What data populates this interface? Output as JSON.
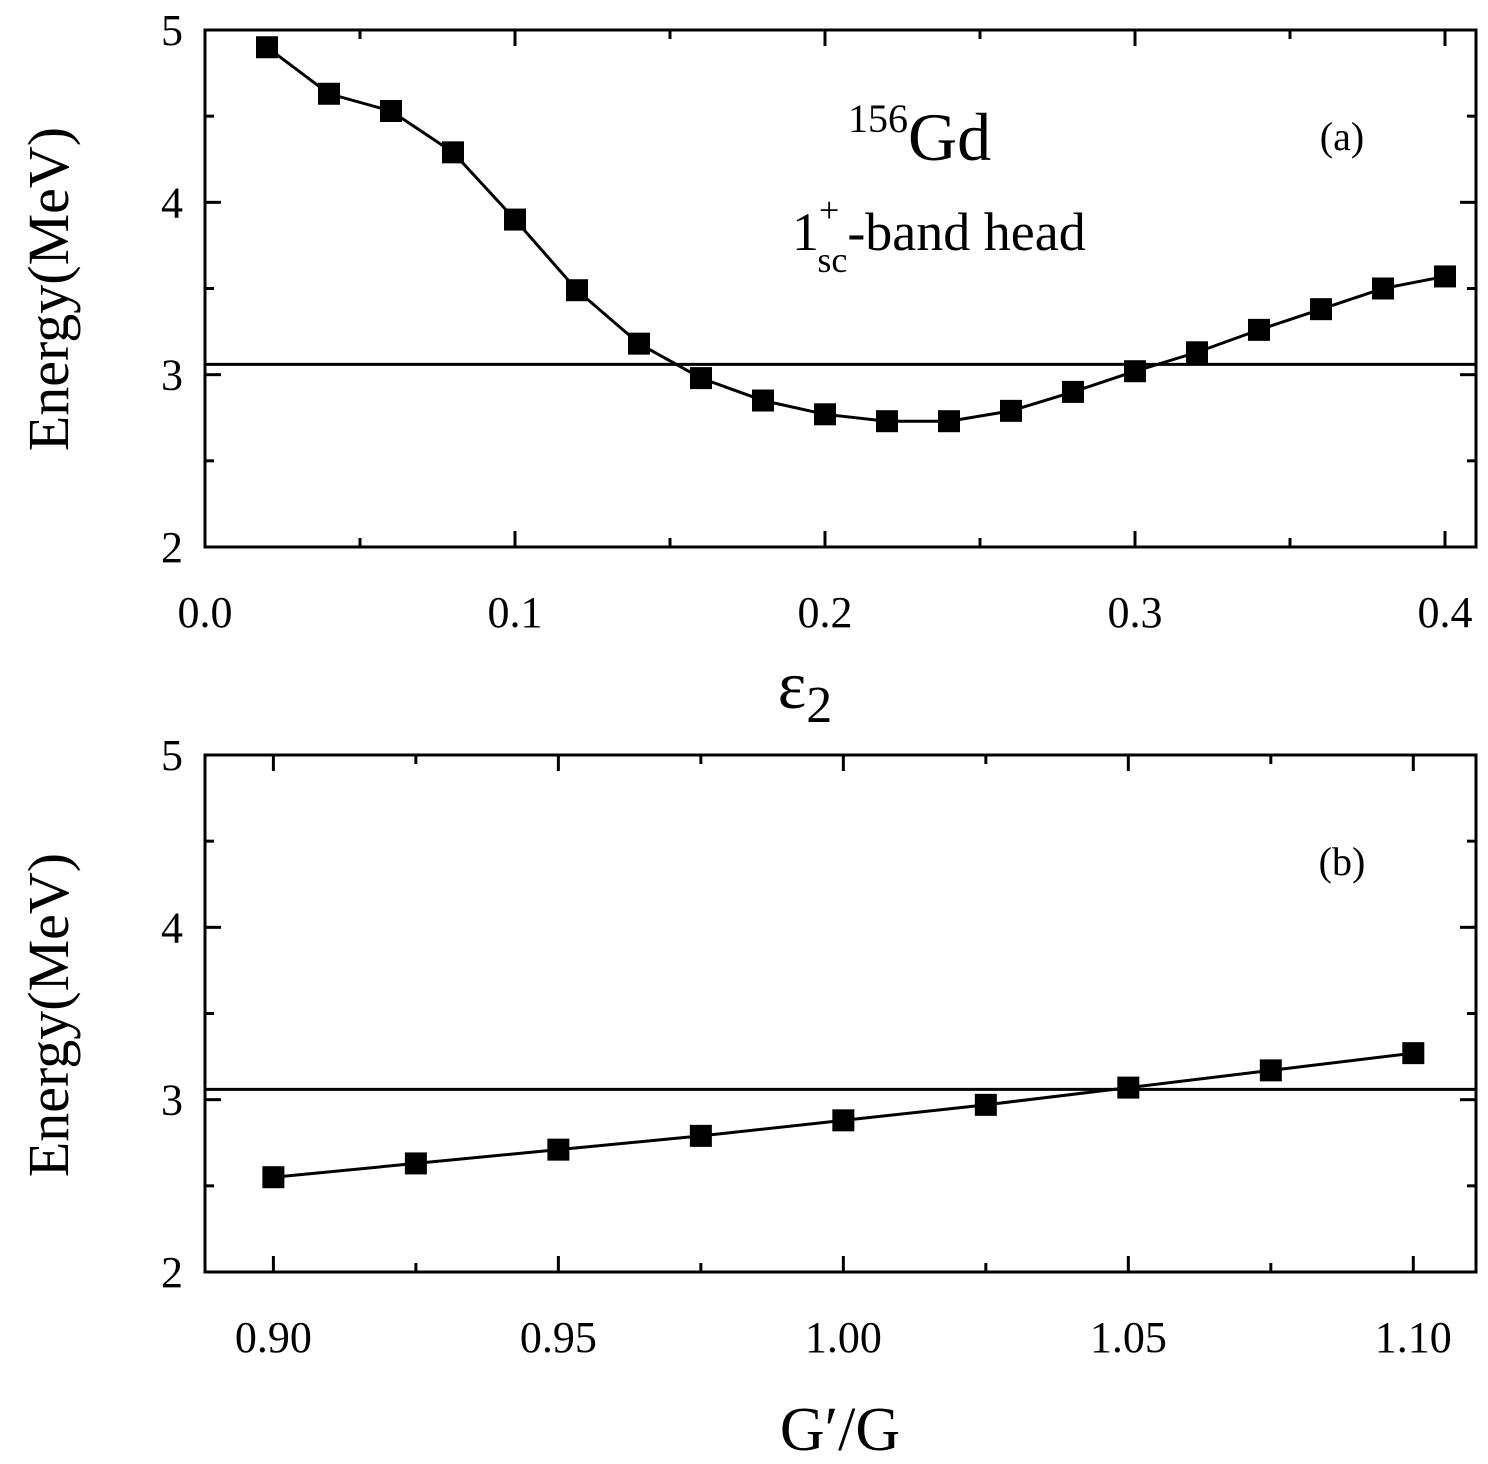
{
  "chart_data": [
    {
      "type": "line",
      "panel_label": "(a)",
      "annotation_nucleus": {
        "mass": "156",
        "element": "Gd"
      },
      "annotation_state": {
        "base": "1",
        "sup": "+",
        "sub": "sc",
        "rest": "-band head"
      },
      "xlabel": {
        "base": "ε",
        "sub": "2"
      },
      "ylabel": "Energy(MeV)",
      "xlim": [
        0.0,
        0.41
      ],
      "ylim": [
        2,
        5
      ],
      "xticks": [
        0.0,
        0.1,
        0.2,
        0.3,
        0.4
      ],
      "xtick_labels": [
        "0.0",
        "0.1",
        "0.2",
        "0.3",
        "0.4"
      ],
      "yticks": [
        2,
        3,
        4,
        5
      ],
      "ytick_labels": [
        "2",
        "3",
        "4",
        "5"
      ],
      "reference_line_y": 3.06,
      "marker": "filled-square",
      "grid": false,
      "series": [
        {
          "x": [
            0.02,
            0.04,
            0.06,
            0.08,
            0.1,
            0.12,
            0.14,
            0.16,
            0.18,
            0.2,
            0.22,
            0.24,
            0.26,
            0.28,
            0.3,
            0.32,
            0.34,
            0.36,
            0.38,
            0.4
          ],
          "y": [
            4.9,
            4.63,
            4.53,
            4.29,
            3.9,
            3.49,
            3.18,
            2.98,
            2.85,
            2.77,
            2.73,
            2.73,
            2.79,
            2.9,
            3.02,
            3.13,
            3.26,
            3.38,
            3.5,
            3.57
          ]
        }
      ]
    },
    {
      "type": "line",
      "panel_label": "(b)",
      "xlabel": {
        "base": "G′/G"
      },
      "ylabel": "Energy(MeV)",
      "xlim": [
        0.888,
        1.111
      ],
      "ylim": [
        2,
        5
      ],
      "xticks": [
        0.9,
        0.95,
        1.0,
        1.05,
        1.1
      ],
      "xtick_labels": [
        "0.90",
        "0.95",
        "1.00",
        "1.05",
        "1.10"
      ],
      "yticks": [
        2,
        3,
        4,
        5
      ],
      "ytick_labels": [
        "2",
        "3",
        "4",
        "5"
      ],
      "reference_line_y": 3.06,
      "marker": "filled-square",
      "grid": false,
      "series": [
        {
          "x": [
            0.9,
            0.925,
            0.95,
            0.975,
            1.0,
            1.025,
            1.05,
            1.075,
            1.1
          ],
          "y": [
            2.55,
            2.63,
            2.71,
            2.79,
            2.88,
            2.97,
            3.07,
            3.17,
            3.27
          ]
        }
      ]
    }
  ]
}
